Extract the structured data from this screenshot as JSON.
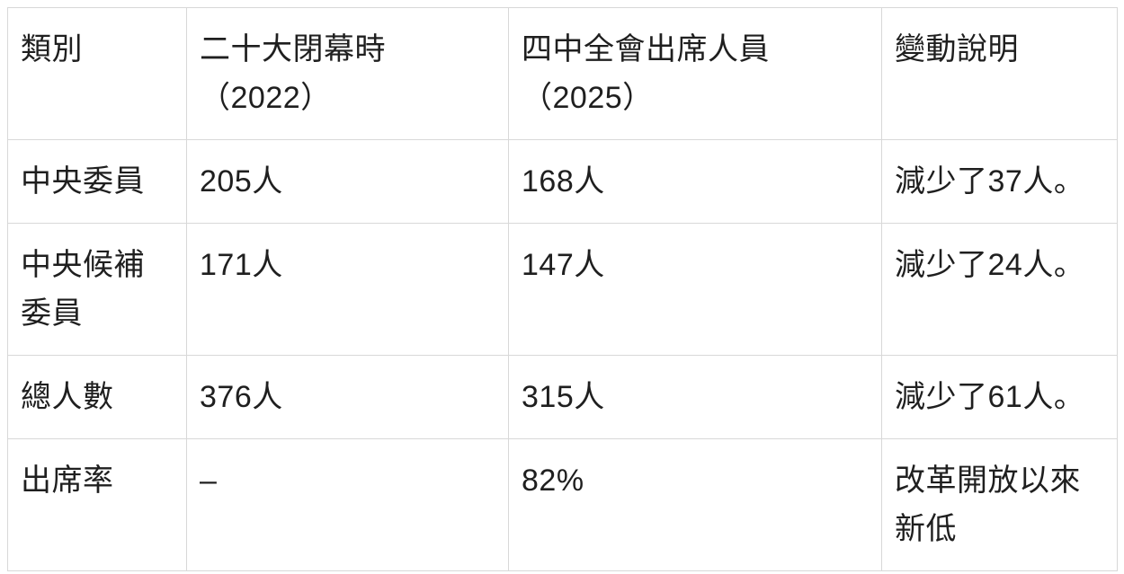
{
  "chart_data": {
    "type": "table",
    "title": "",
    "columns": [
      "類別",
      "二十大閉幕時（2022）",
      "四中全會出席人員（2025）",
      "變動說明"
    ],
    "rows": [
      [
        "中央委員",
        "205人",
        "168人",
        "減少了37人。"
      ],
      [
        "中央候補委員",
        "171人",
        "147人",
        "減少了24人。"
      ],
      [
        "總人數",
        "376人",
        "315人",
        "減少了61人。"
      ],
      [
        "出席率",
        "–",
        "82%",
        "改革開放以來新低"
      ]
    ]
  },
  "header": {
    "c0": {
      "line1": "類別"
    },
    "c1": {
      "line1": "二十大閉幕時",
      "line2": "（2022）"
    },
    "c2": {
      "line1": "四中全會出席人員",
      "line2": "（2025）"
    },
    "c3": {
      "line1": "變動說明"
    }
  },
  "colors": {
    "background": "#ffffff",
    "border": "#d8d8d8",
    "text": "#1f1f1f"
  }
}
